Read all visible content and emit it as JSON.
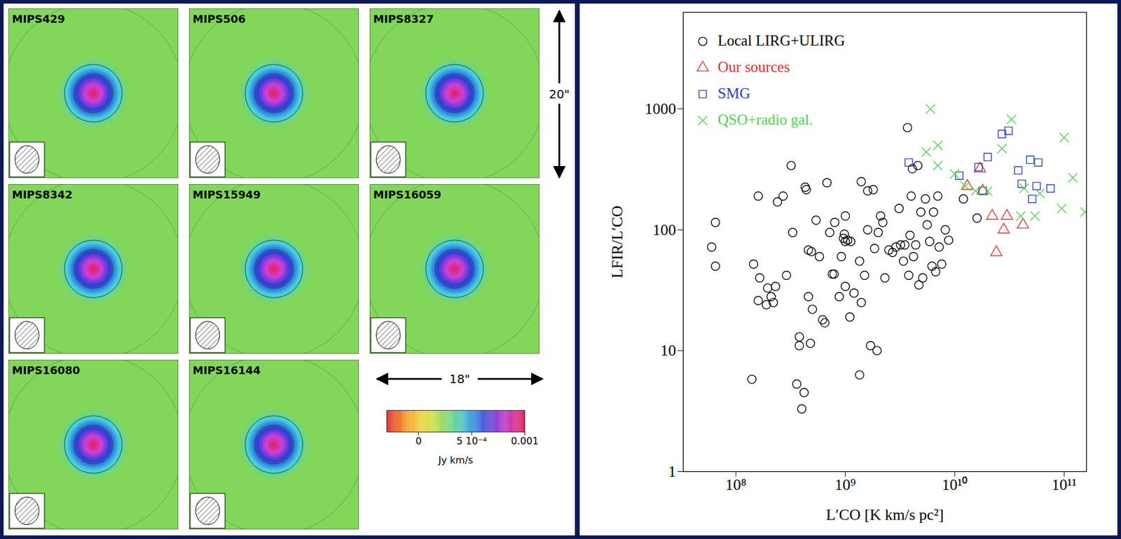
{
  "maps": {
    "panels": [
      "MIPS429",
      "MIPS506",
      "MIPS8327",
      "MIPS8342",
      "MIPS15949",
      "MIPS16059",
      "MIPS16080",
      "MIPS16144"
    ],
    "scale_vertical": "20\"",
    "scale_horizontal": "18\"",
    "colorbar": {
      "label": "Jy km/s",
      "lim": [
        -0.0003,
        0.001
      ],
      "ticks": [
        0,
        {
          "value": 0.0005,
          "label": "5 10⁻⁴"
        },
        0.001
      ]
    }
  },
  "chart_data": {
    "type": "scatter",
    "xlabel": "L′CO [K km/s pc²]",
    "ylabel": "LFIR/L′CO",
    "log": true,
    "grid": false,
    "legend": "top-left",
    "xlim": [
      33000000,
      160000000000
    ],
    "ylim": [
      1,
      6300
    ],
    "xticks": [
      {
        "value": 100000000,
        "label": "10⁸"
      },
      {
        "value": 1000000000,
        "label": "10⁹"
      },
      {
        "value": 10000000000,
        "label": "10¹⁰"
      },
      {
        "value": 100000000000,
        "label": "10¹¹"
      }
    ],
    "yticks": [
      1,
      10,
      100,
      1000
    ],
    "series": [
      {
        "name": "Local LIRG+ULIRG",
        "color": "#000000",
        "marker": "circle",
        "x": [
          60000000,
          65000000,
          65000000,
          140000000,
          145000000,
          160000000,
          165000000,
          160000000,
          190000000,
          195000000,
          210000000,
          230000000,
          220000000,
          240000000,
          270000000,
          290000000,
          320000000,
          330000000,
          360000000,
          380000000,
          380000000,
          400000000,
          420000000,
          430000000,
          440000000,
          460000000,
          460000000,
          480000000,
          490000000,
          500000000,
          540000000,
          580000000,
          620000000,
          650000000,
          680000000,
          720000000,
          760000000,
          790000000,
          800000000,
          880000000,
          920000000,
          960000000,
          980000000,
          1000000000,
          1000000000,
          1000000000,
          1050000000,
          1100000000,
          1120000000,
          1200000000,
          1350000000,
          1350000000,
          1400000000,
          1400000000,
          1500000000,
          1600000000,
          1600000000,
          1700000000,
          1800000000,
          1850000000,
          1950000000,
          2000000000,
          2100000000,
          2200000000,
          2300000000,
          2500000000,
          2700000000,
          2900000000,
          3100000000,
          3200000000,
          3400000000,
          3500000000,
          3700000000,
          3800000000,
          3900000000,
          4000000000,
          4100000000,
          4200000000,
          4400000000,
          4600000000,
          4700000000,
          4900000000,
          5100000000,
          5400000000,
          5600000000,
          5900000000,
          6200000000,
          6400000000,
          6700000000,
          7000000000,
          7200000000,
          7600000000,
          8200000000,
          8800000000,
          12000000000,
          16000000000
        ],
        "values": [
          72,
          115,
          50,
          5.8,
          52,
          190,
          40,
          26,
          24,
          33,
          28,
          34,
          25,
          170,
          190,
          42,
          340,
          95,
          5.3,
          11,
          13,
          3.3,
          4.5,
          225,
          215,
          28,
          68,
          11.5,
          66,
          22,
          120,
          60,
          18,
          17,
          245,
          95,
          43,
          43,
          115,
          28,
          60,
          85,
          92,
          80,
          130,
          34,
          82,
          19,
          80,
          30,
          55,
          6.3,
          250,
          25,
          42,
          100,
          210,
          11,
          215,
          70,
          10,
          95,
          130,
          115,
          40,
          68,
          65,
          72,
          150,
          75,
          55,
          75,
          700,
          42,
          90,
          190,
          320,
          60,
          75,
          340,
          35,
          140,
          40,
          180,
          110,
          80,
          50,
          140,
          45,
          190,
          72,
          52,
          100,
          82,
          180,
          125
        ]
      },
      {
        "name": "Our sources",
        "color": "#e0302a",
        "marker": "triangle",
        "x": [
          13000000000,
          17000000000,
          18000000000,
          22000000000,
          24000000000,
          28000000000,
          30000000000,
          42000000000
        ],
        "values": [
          230,
          320,
          210,
          130,
          65,
          100,
          130,
          110
        ]
      },
      {
        "name": "SMG",
        "color": "#2a3cc8",
        "marker": "square",
        "x": [
          3800000000,
          11000000000,
          16500000000,
          18000000000,
          20000000000,
          27000000000,
          31000000000,
          38000000000,
          41000000000,
          49000000000,
          51000000000,
          56000000000,
          58000000000,
          75000000000
        ],
        "values": [
          360,
          280,
          330,
          210,
          400,
          620,
          660,
          310,
          240,
          380,
          180,
          230,
          360,
          220
        ]
      },
      {
        "name": "QSO+radio gal.",
        "color": "#4fd14f",
        "marker": "times",
        "x": [
          6000000000,
          5500000000,
          7000000000,
          7000000000,
          10000000000,
          12500000000,
          15500000000,
          20000000000,
          27000000000,
          33000000000,
          40000000000,
          43000000000,
          54000000000,
          60000000000,
          95000000000,
          100000000000,
          120000000000,
          155000000000
        ],
        "values": [
          1000,
          440,
          500,
          340,
          290,
          230,
          210,
          210,
          470,
          820,
          130,
          220,
          130,
          200,
          150,
          580,
          270,
          140
        ]
      }
    ]
  }
}
